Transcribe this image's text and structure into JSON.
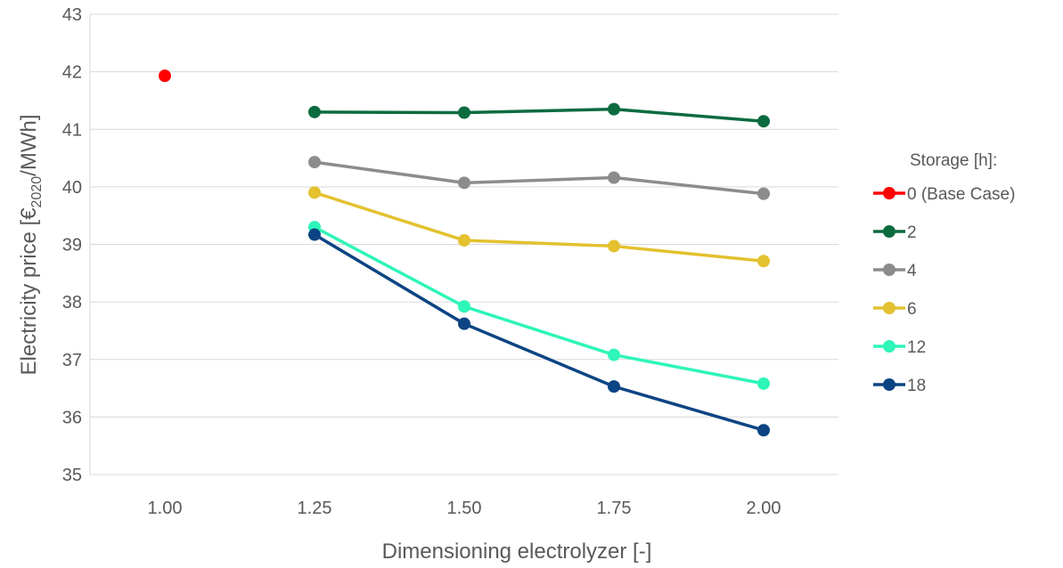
{
  "chart_data": {
    "type": "line",
    "xlabel": "Dimensioning electrolyzer [-]",
    "ylabel": {
      "prefix": "Electricity price [€",
      "subscript": "2020",
      "suffix": "/MWh]"
    },
    "categories": [
      "1.00",
      "1.25",
      "1.50",
      "1.75",
      "2.00"
    ],
    "ylim": [
      35,
      43
    ],
    "yticks": [
      "35",
      "36",
      "37",
      "38",
      "39",
      "40",
      "41",
      "42",
      "43"
    ],
    "grid": true,
    "legend": {
      "title": "Storage [h]:",
      "position": "right"
    },
    "series": [
      {
        "name": "0 (Base Case)",
        "color": "#ff0000",
        "values": [
          41.93,
          null,
          null,
          null,
          null
        ]
      },
      {
        "name": "2",
        "color": "#0b6b3f",
        "values": [
          null,
          41.3,
          41.29,
          41.35,
          41.14
        ]
      },
      {
        "name": "4",
        "color": "#8c8c8c",
        "values": [
          null,
          40.43,
          40.07,
          40.16,
          39.88
        ]
      },
      {
        "name": "6",
        "color": "#e3c12f",
        "values": [
          null,
          39.9,
          39.07,
          38.97,
          38.71
        ]
      },
      {
        "name": "12",
        "color": "#2ef5b8",
        "values": [
          null,
          39.3,
          37.92,
          37.08,
          36.58
        ]
      },
      {
        "name": "18",
        "color": "#0c4483",
        "values": [
          null,
          39.17,
          37.62,
          36.53,
          35.77
        ]
      }
    ]
  }
}
